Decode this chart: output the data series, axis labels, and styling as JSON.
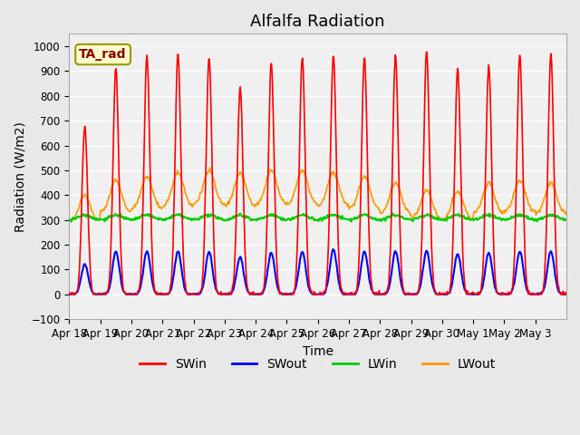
{
  "title": "Alfalfa Radiation",
  "xlabel": "Time",
  "ylabel": "Radiation (W/m2)",
  "ylim": [
    -100,
    1050
  ],
  "legend_label": "TA_rad",
  "series_names": [
    "SWin",
    "SWout",
    "LWin",
    "LWout"
  ],
  "series_colors": [
    "#ff0000",
    "#0000ff",
    "#00cc00",
    "#ff9900"
  ],
  "x_tick_labels": [
    "Apr 18",
    "Apr 19",
    "Apr 20",
    "Apr 21",
    "Apr 22",
    "Apr 23",
    "Apr 24",
    "Apr 25",
    "Apr 26",
    "Apr 27",
    "Apr 28",
    "Apr 29",
    "Apr 30",
    "May 1",
    "May 2",
    "May 3"
  ],
  "background_color": "#e8e8e8",
  "plot_bg_color": "#f0f0f0",
  "grid_color": "#ffffff",
  "title_fontsize": 13,
  "axis_fontsize": 10,
  "tick_fontsize": 8.5,
  "legend_fontsize": 10,
  "n_days": 16,
  "pts_per_day": 48,
  "SWin_peaks": [
    680,
    910,
    960,
    970,
    955,
    840,
    930,
    955,
    965,
    960,
    965,
    980,
    910,
    925,
    965,
    970
  ],
  "SWout_scales": [
    0.18,
    0.19,
    0.18,
    0.18,
    0.18,
    0.18,
    0.18,
    0.18,
    0.19,
    0.18,
    0.18,
    0.18,
    0.18,
    0.18,
    0.18,
    0.18
  ],
  "LWout_peaks": [
    400,
    460,
    475,
    490,
    500,
    490,
    500,
    500,
    490,
    475,
    450,
    420,
    415,
    450,
    460,
    450
  ],
  "yticks": [
    -100,
    0,
    100,
    200,
    300,
    400,
    500,
    600,
    700,
    800,
    900,
    1000
  ]
}
